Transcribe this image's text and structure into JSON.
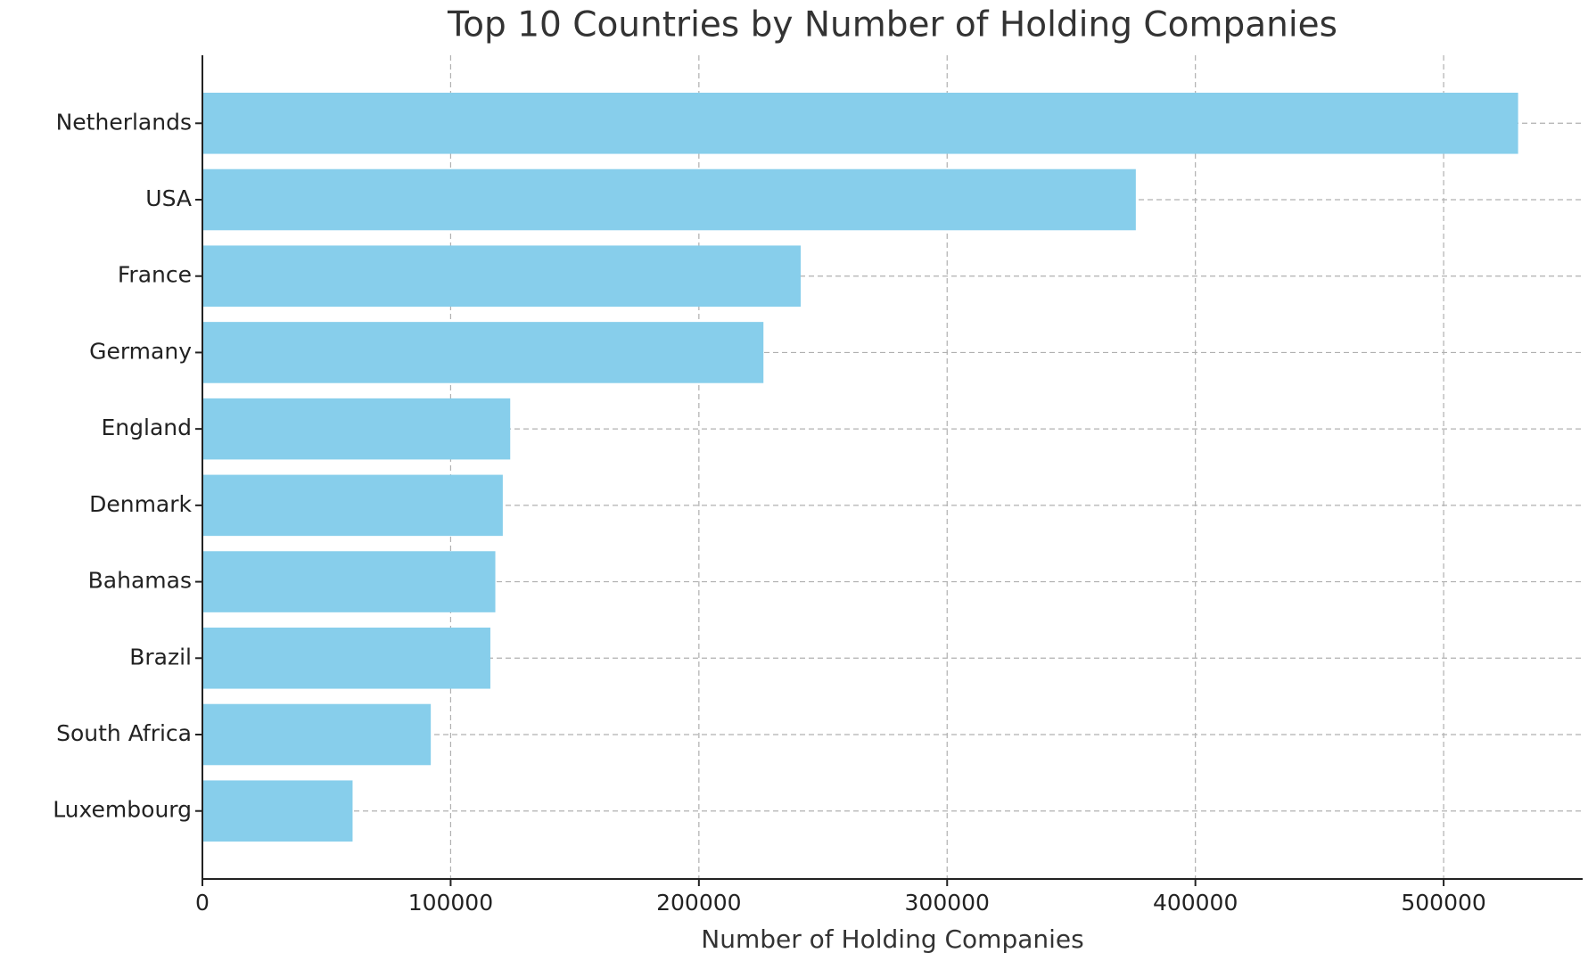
{
  "chart_data": {
    "type": "barh",
    "title": "Top 10 Countries by Number of Holding Companies",
    "x_label": "Number of Holding Companies",
    "categories": [
      "Netherlands",
      "USA",
      "France",
      "Germany",
      "England",
      "Denmark",
      "Bahamas",
      "Brazil",
      "South Africa",
      "Luxembourg"
    ],
    "values": [
      530000,
      376000,
      241000,
      226000,
      124000,
      121000,
      118000,
      116000,
      92000,
      60500
    ],
    "color": "#87ceeb",
    "xlim": [
      0,
      556000
    ],
    "xticks": [
      0,
      100000,
      200000,
      300000,
      400000,
      500000
    ],
    "grid": true
  }
}
